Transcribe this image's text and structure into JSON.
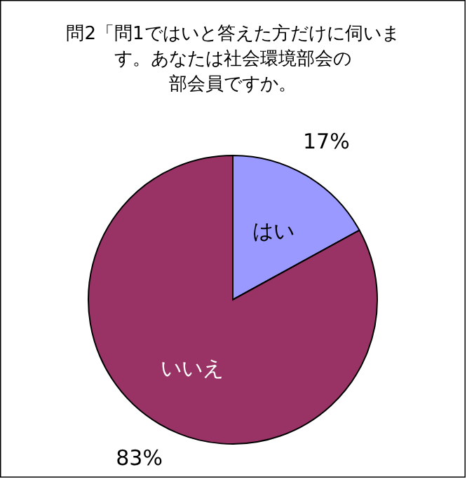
{
  "chart_data": {
    "type": "pie",
    "title": "問2「問1ではいと答えた方だけに伺います。あなたは社会環境部会の部会員ですか。",
    "categories": [
      "はい",
      "いいえ"
    ],
    "values": [
      17,
      83
    ],
    "colors": [
      "#9999ff",
      "#993366"
    ],
    "value_labels": [
      "17%",
      "83%"
    ]
  }
}
